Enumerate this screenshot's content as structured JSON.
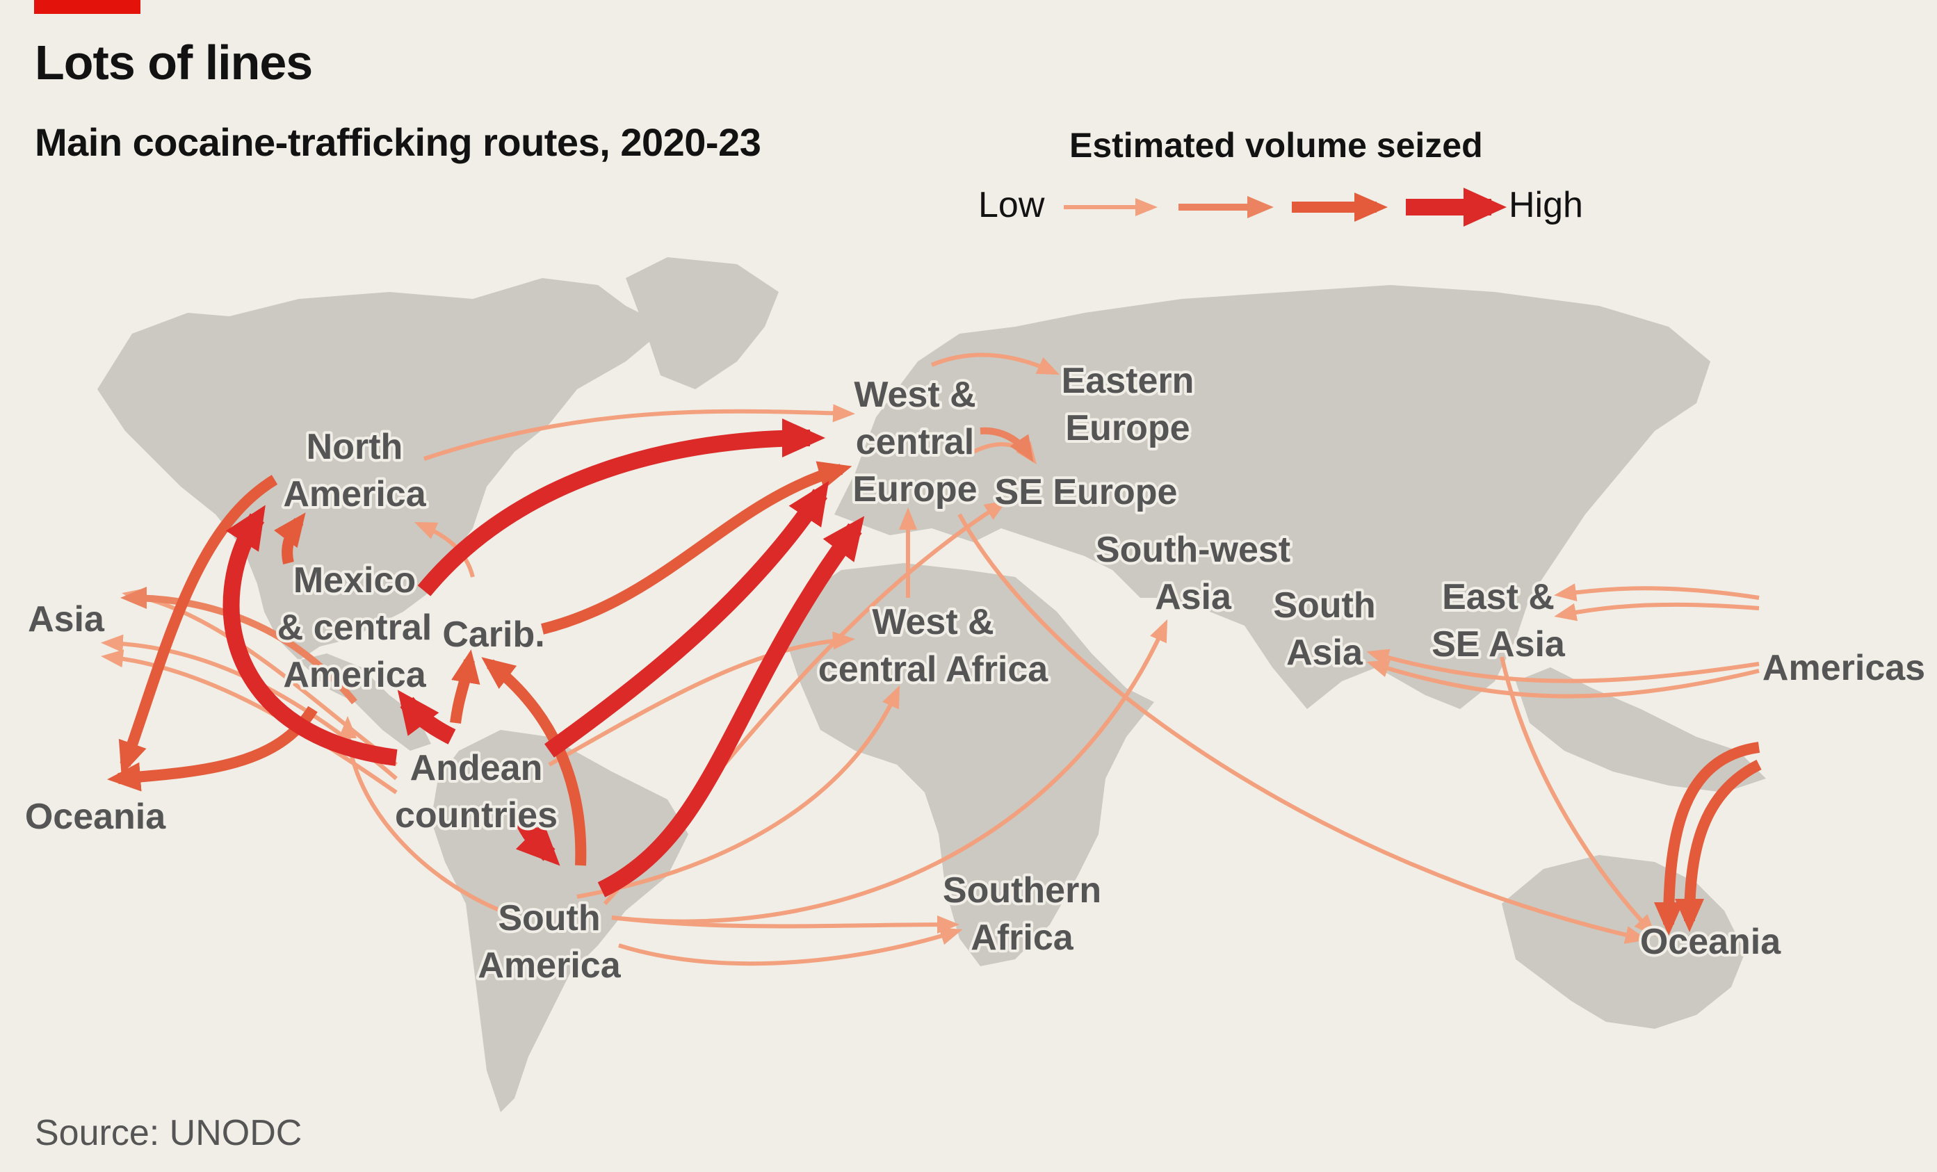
{
  "header": {
    "title": "Lots of lines",
    "subtitle": "Main cocaine-trafficking routes, 2020-23"
  },
  "legend": {
    "title": "Estimated volume seized",
    "low_label": "Low",
    "high_label": "High",
    "levels": [
      "low",
      "medium-low",
      "medium-high",
      "high"
    ]
  },
  "colors": {
    "accent": "#e3120b",
    "low": "#f2a07d",
    "medium_low": "#ec8360",
    "medium_high": "#e45b3c",
    "high": "#dc2a28",
    "land": "#cbc9c1",
    "background": "#f0eee6",
    "label": "#555555"
  },
  "regions": {
    "north_america": [
      "North",
      "America"
    ],
    "mexico_central_america": [
      "Mexico",
      "& central",
      "America"
    ],
    "caribbean": [
      "Carib."
    ],
    "andean_countries": [
      "Andean",
      "countries"
    ],
    "south_america": [
      "South",
      "America"
    ],
    "asia_west": [
      "Asia"
    ],
    "oceania_west": [
      "Oceania"
    ],
    "west_central_europe": [
      "West &",
      "central",
      "Europe"
    ],
    "eastern_europe": [
      "Eastern",
      "Europe"
    ],
    "se_europe": [
      "SE Europe"
    ],
    "south_west_asia": [
      "South-west",
      "Asia"
    ],
    "west_central_africa": [
      "West &",
      "central Africa"
    ],
    "southern_africa": [
      "Southern",
      "Africa"
    ],
    "south_asia": [
      "South",
      "Asia"
    ],
    "east_se_asia": [
      "East &",
      "SE Asia"
    ],
    "americas_east": [
      "Americas"
    ],
    "oceania_east": [
      "Oceania"
    ]
  },
  "source": "Source: UNODC"
}
